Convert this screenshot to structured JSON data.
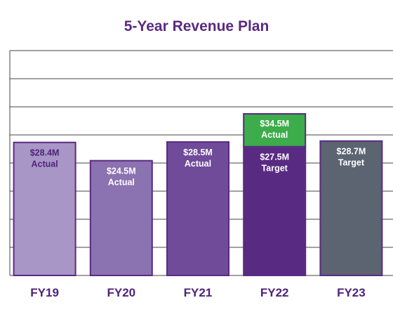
{
  "chart_data": {
    "type": "bar",
    "title": "5-Year Revenue Plan",
    "xlabel": "",
    "ylabel": "",
    "categories": [
      "FY19",
      "FY20",
      "FY21",
      "FY22",
      "FY23"
    ],
    "ylim": [
      0,
      48
    ],
    "grid": true,
    "bars": [
      {
        "category": "FY19",
        "value": 28.4,
        "label": "$28.4M",
        "sublabel": "Actual",
        "color": "#a896c6",
        "border": "#5a2a82",
        "text_color": "#4f2379"
      },
      {
        "category": "FY20",
        "value": 24.5,
        "label": "$24.5M",
        "sublabel": "Actual",
        "color": "#8b72b0",
        "border": "#5a2a82",
        "text_color": "#ffffff"
      },
      {
        "category": "FY21",
        "value": 28.5,
        "label": "$28.5M",
        "sublabel": "Actual",
        "color": "#6f4b9a",
        "border": "#5a2a82",
        "text_color": "#ffffff"
      },
      {
        "category": "FY22",
        "value": 27.5,
        "label": "$27.5M",
        "sublabel": "Target",
        "color": "#582a82",
        "border": "#5a2a82",
        "text_color": "#ffffff",
        "stack": {
          "value": 34.5,
          "label": "$34.5M",
          "sublabel": "Actual",
          "color": "#3cad4a",
          "border": "#5a2a82",
          "text_color": "#ffffff"
        }
      },
      {
        "category": "FY23",
        "value": 28.7,
        "label": "$28.7M",
        "sublabel": "Target",
        "color": "#5b6470",
        "border": "#5a2a82",
        "text_color": "#ffffff"
      }
    ]
  }
}
